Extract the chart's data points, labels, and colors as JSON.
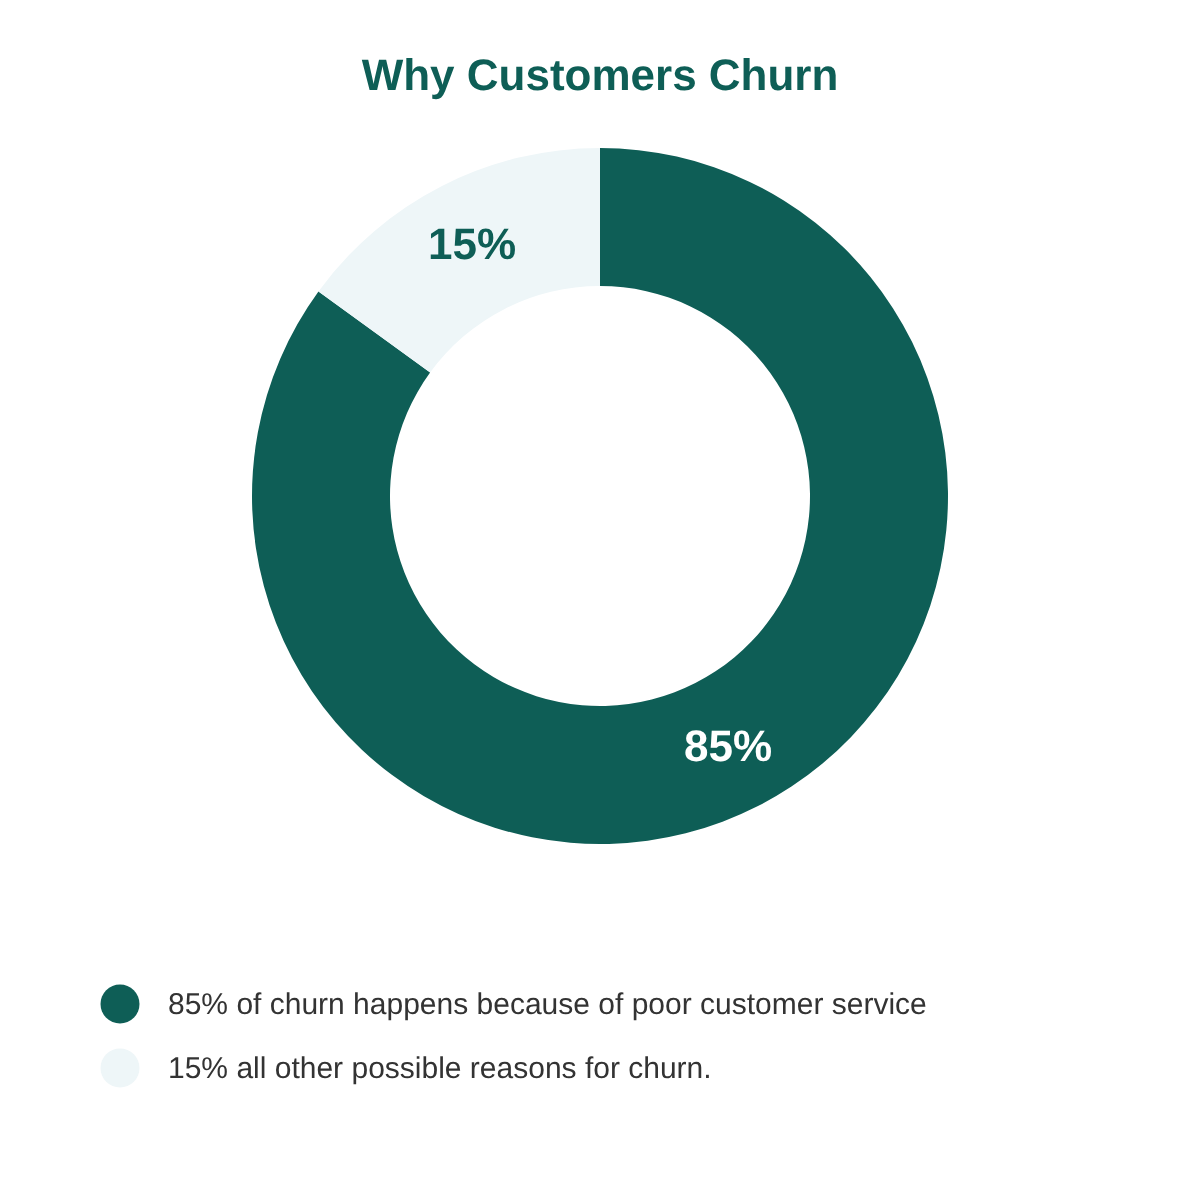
{
  "chart_data": {
    "type": "donut",
    "title": "Why Customers Churn",
    "categories": [
      "85% of churn happens because of poor customer service",
      "15% all other possible reasons for churn."
    ],
    "values": [
      85,
      15
    ],
    "colors": [
      "#0e5e56",
      "#eef6f8"
    ],
    "value_labels": [
      "85%",
      "15%"
    ],
    "legend": "bottom"
  }
}
